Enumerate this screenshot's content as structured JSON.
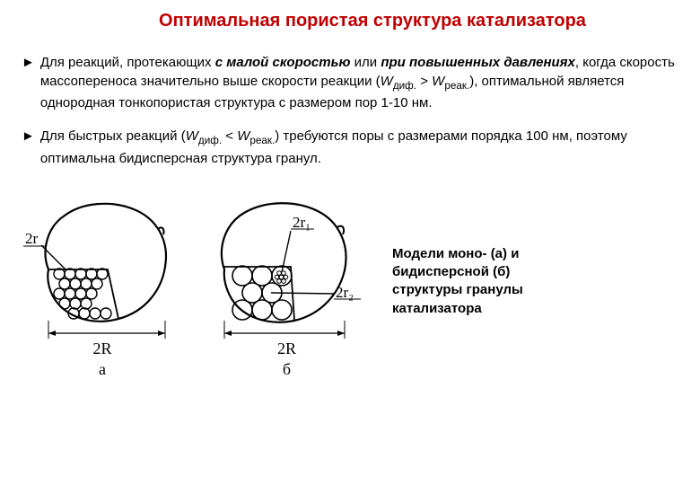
{
  "title": "Оптимальная пористая структура катализатора",
  "bullets": [
    {
      "html": "Для реакций, протекающих <b><i>с малой скоростью</i></b> или <b><i>при повышенных давлениях</i></b>, когда скорость массопереноса значительно выше скорости реакции (<i>W</i><span class='sub'>диф.</span> &gt; <i>W</i><span class='sub'>реак.</span>), оптимальной является однородная тонкопористая структура с размером пор 1-10 нм."
    },
    {
      "html": "Для быстрых реакций (<i>W</i><span class='sub'>диф.</span> &lt; <i>W</i><span class='sub'>реак.</span>) требуются поры с размерами порядка 100 нм, поэтому оптимальна бидисперсная структура гранул."
    }
  ],
  "caption": "Модели моно- (а) и бидисперсной (б) структуры гранулы катализатора",
  "diagramA": {
    "label": "а",
    "dimLabel": "2R",
    "poreLabel": "2r"
  },
  "diagramB": {
    "label": "б",
    "dimLabel": "2R",
    "poreLabel1": "2r₁",
    "poreLabel2": "2r₂"
  },
  "colors": {
    "title": "#c00000",
    "stroke": "#000000",
    "bg": "#ffffff"
  }
}
